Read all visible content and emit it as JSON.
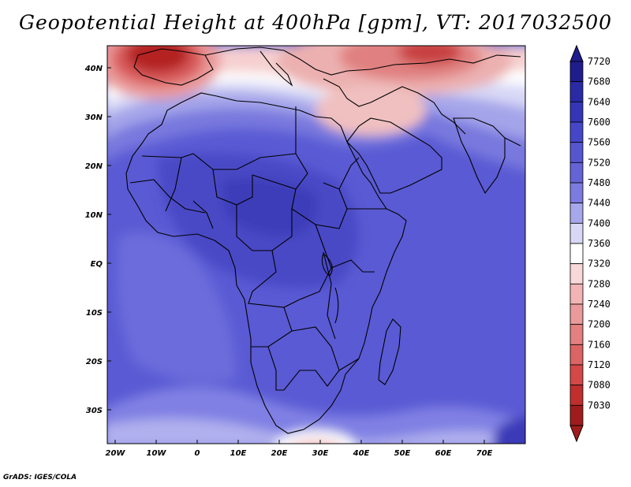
{
  "title": "Geopotential Height at 400hPa [gpm], VT: 2017032500",
  "footer": "GrADS: IGES/COLA",
  "map": {
    "region": "Africa",
    "variable": "Geopotential Height",
    "level": "400hPa",
    "units": "gpm",
    "valid_time": "2017032500",
    "lon_range": [
      -25,
      80
    ],
    "lat_range": [
      -37,
      45
    ],
    "lat_ticks": [
      "40N",
      "30N",
      "20N",
      "10N",
      "EQ",
      "10S",
      "20S",
      "30S"
    ],
    "lon_ticks": [
      "20W",
      "10W",
      "0",
      "10E",
      "20E",
      "30E",
      "40E",
      "50E",
      "60E",
      "70E"
    ]
  },
  "colorbar": {
    "labels": [
      "7720",
      "7680",
      "7640",
      "7600",
      "7560",
      "7520",
      "7480",
      "7440",
      "7400",
      "7360",
      "7320",
      "7280",
      "7240",
      "7200",
      "7160",
      "7120",
      "7080",
      "7030"
    ],
    "colors": [
      "#1f1c8c",
      "#2a2aa6",
      "#3535b8",
      "#4646c8",
      "#5656d2",
      "#6464d6",
      "#7b7be0",
      "#a7a7ec",
      "#d8d8f6",
      "#ffffff",
      "#f8d8d8",
      "#f2b4b4",
      "#ea9a9a",
      "#e48080",
      "#dc6464",
      "#d44848",
      "#c02e2e",
      "#a01c1c"
    ]
  }
}
